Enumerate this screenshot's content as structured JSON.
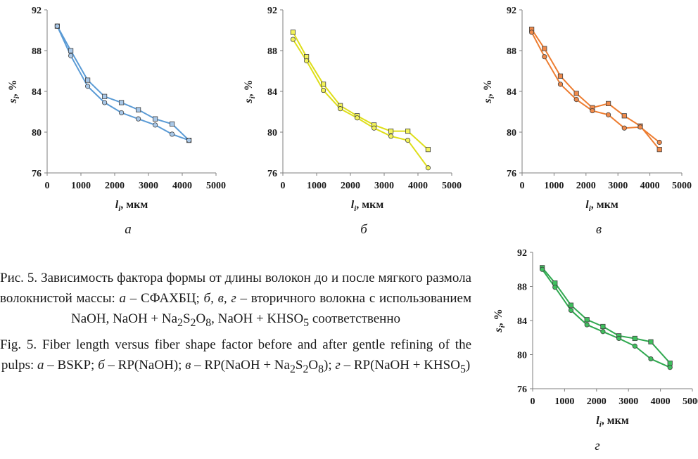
{
  "charts": [
    {
      "id": "a",
      "panel_label": "а",
      "color": "#5b9bd5",
      "fill": "#a9c8e8",
      "chart_data": {
        "type": "line",
        "xlim": [
          0,
          5000
        ],
        "ylim": [
          76,
          92
        ],
        "x_ticks": [
          "0",
          "1000",
          "2000",
          "3000",
          "4000",
          "5000"
        ],
        "y_ticks": [
          "92",
          "88",
          "84",
          "80",
          "76"
        ],
        "xlabel_main": "l",
        "xlabel_sub": "i",
        "xlabel_rest": ", мкм",
        "ylabel_main": "s",
        "ylabel_sub": "i",
        "ylabel_rest": ", %",
        "series": [
          {
            "marker": "square",
            "x": [
              300,
              700,
              1200,
              1700,
              2200,
              2700,
              3200,
              3700,
              4200
            ],
            "y": [
              90.4,
              88.0,
              85.1,
              83.5,
              82.9,
              82.2,
              81.3,
              80.8,
              79.2
            ]
          },
          {
            "marker": "circle",
            "x": [
              300,
              700,
              1200,
              1700,
              2200,
              2700,
              3200,
              3700,
              4200
            ],
            "y": [
              90.4,
              87.5,
              84.5,
              82.9,
              81.9,
              81.3,
              80.7,
              79.8,
              79.2
            ]
          }
        ]
      }
    },
    {
      "id": "b",
      "panel_label": "б",
      "color": "#dede1a",
      "fill": "#f3f35a",
      "chart_data": {
        "type": "line",
        "xlim": [
          0,
          5000
        ],
        "ylim": [
          76,
          92
        ],
        "x_ticks": [
          "0",
          "1000",
          "2000",
          "3000",
          "4000",
          "5000"
        ],
        "y_ticks": [
          "92",
          "88",
          "84",
          "80",
          "76"
        ],
        "xlabel_main": "l",
        "xlabel_sub": "i",
        "xlabel_rest": ", мкм",
        "ylabel_main": "s",
        "ylabel_sub": "i",
        "ylabel_rest": ", %",
        "series": [
          {
            "marker": "square",
            "x": [
              300,
              700,
              1200,
              1700,
              2200,
              2700,
              3200,
              3700,
              4300
            ],
            "y": [
              89.8,
              87.4,
              84.7,
              82.6,
              81.6,
              80.7,
              80.1,
              80.1,
              78.3
            ]
          },
          {
            "marker": "circle",
            "x": [
              300,
              700,
              1200,
              1700,
              2200,
              2700,
              3200,
              3700,
              4300
            ],
            "y": [
              89.1,
              87.0,
              84.1,
              82.3,
              81.4,
              80.4,
              79.6,
              79.2,
              76.5
            ]
          }
        ]
      }
    },
    {
      "id": "c",
      "panel_label": "в",
      "color": "#ed7d31",
      "fill": "#f08a4a",
      "chart_data": {
        "type": "line",
        "xlim": [
          0,
          5000
        ],
        "ylim": [
          76,
          92
        ],
        "x_ticks": [
          "0",
          "1000",
          "2000",
          "3000",
          "4000",
          "5000"
        ],
        "y_ticks": [
          "92",
          "88",
          "84",
          "80",
          "76"
        ],
        "xlabel_main": "l",
        "xlabel_sub": "i",
        "xlabel_rest": ", мкм",
        "ylabel_main": "s",
        "ylabel_sub": "i",
        "ylabel_rest": ", %",
        "series": [
          {
            "marker": "square",
            "x": [
              300,
              700,
              1200,
              1700,
              2200,
              2700,
              3200,
              3700,
              4300
            ],
            "y": [
              90.1,
              88.2,
              85.5,
              83.8,
              82.4,
              82.8,
              81.6,
              80.6,
              78.3
            ]
          },
          {
            "marker": "circle",
            "x": [
              300,
              700,
              1200,
              1700,
              2200,
              2700,
              3200,
              3700,
              4300
            ],
            "y": [
              89.8,
              87.4,
              84.7,
              83.2,
              82.1,
              81.7,
              80.4,
              80.5,
              79.0
            ]
          }
        ]
      }
    },
    {
      "id": "d",
      "panel_label": "г",
      "color": "#2fa84f",
      "fill": "#3fbf5e",
      "chart_data": {
        "type": "line",
        "xlim": [
          0,
          5000
        ],
        "ylim": [
          76,
          92
        ],
        "x_ticks": [
          "0",
          "1000",
          "2000",
          "3000",
          "4000",
          "5000"
        ],
        "y_ticks": [
          "92",
          "88",
          "84",
          "80",
          "76"
        ],
        "xlabel_main": "l",
        "xlabel_sub": "i",
        "xlabel_rest": ", мкм",
        "ylabel_main": "s",
        "ylabel_sub": "i",
        "ylabel_rest": ", %",
        "series": [
          {
            "marker": "square",
            "x": [
              300,
              700,
              1200,
              1700,
              2200,
              2700,
              3200,
              3700,
              4300
            ],
            "y": [
              90.2,
              88.4,
              85.8,
              84.1,
              83.3,
              82.2,
              81.9,
              81.5,
              79.0
            ]
          },
          {
            "marker": "circle",
            "x": [
              300,
              700,
              1200,
              1700,
              2200,
              2700,
              3200,
              3700,
              4300
            ],
            "y": [
              90.0,
              87.9,
              85.2,
              83.5,
              82.7,
              81.9,
              81.0,
              79.5,
              78.5
            ]
          }
        ]
      }
    }
  ],
  "caption": {
    "ru_1": "Рис. 5. Зависимость фактора формы от длины волокон до и после мягкого размола волокнистой массы: ",
    "ru_a": "а",
    "ru_2": " – СФАХБЦ; ",
    "ru_bvg": "б, в, г",
    "ru_3": " – вторичного волокна с использованием NaOH, NaOH + Na",
    "ru_sub1": "2",
    "ru_4": "S",
    "ru_sub2": "2",
    "ru_5": "O",
    "ru_sub3": "8",
    "ru_6": ", NaOH + KHSO",
    "ru_sub4": "5",
    "ru_7": " соответственно",
    "en_1": "Fig. 5. Fiber length versus fiber shape factor before and after gentle refining of the pulps: ",
    "en_a": "а",
    "en_2": " – BSKP; ",
    "en_b": "б",
    "en_3": " – RP(NaOH); ",
    "en_v": "в",
    "en_4": " – RP(NaOH + Na",
    "en_sub1": "2",
    "en_5": "S",
    "en_sub2": "2",
    "en_6": "O",
    "en_sub3": "8",
    "en_7": "); ",
    "en_g": "г",
    "en_8": " – RP(NaOH + KHSO",
    "en_sub4": "5",
    "en_9": ")"
  }
}
